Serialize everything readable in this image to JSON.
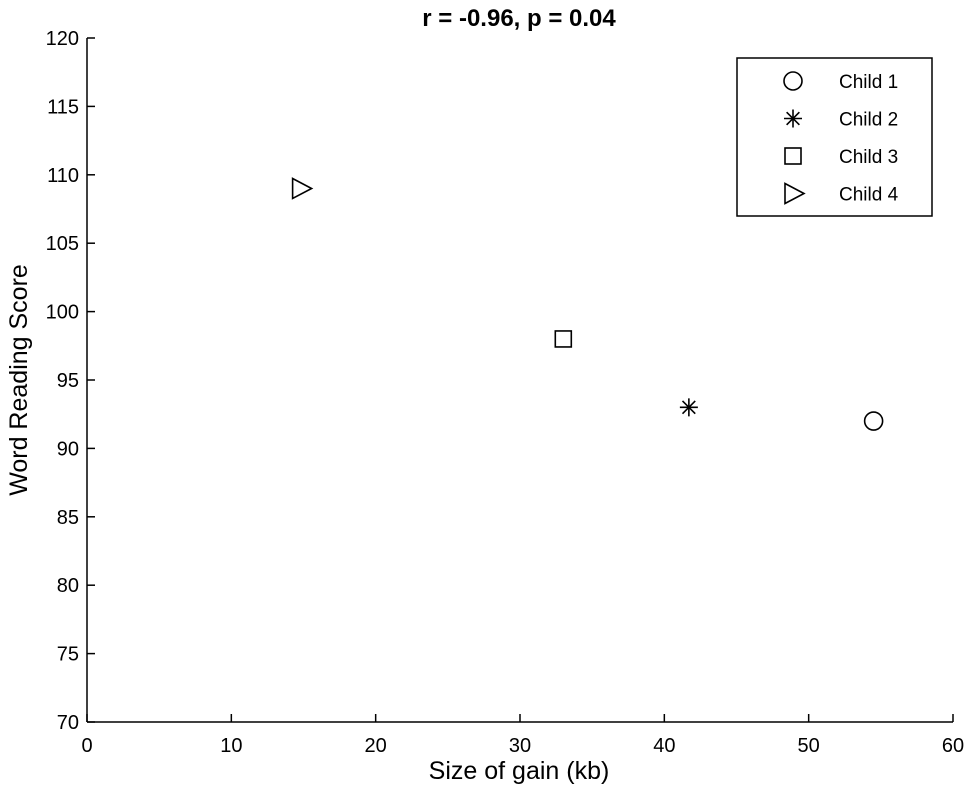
{
  "chart_data": {
    "type": "scatter",
    "title": "r = -0.96, p = 0.04",
    "xlabel": "Size of gain (kb)",
    "ylabel": "Word Reading Score",
    "xlim": [
      0,
      60
    ],
    "ylim": [
      70,
      120
    ],
    "x_ticks": [
      "0",
      "10",
      "20",
      "30",
      "40",
      "50",
      "60"
    ],
    "y_ticks": [
      "70",
      "75",
      "80",
      "85",
      "90",
      "95",
      "100",
      "105",
      "110",
      "115",
      "120"
    ],
    "grid": false,
    "legend_position": "top-right",
    "series": [
      {
        "name": "Child 1",
        "marker": "circle",
        "x": [
          54.5
        ],
        "y": [
          92
        ]
      },
      {
        "name": "Child 2",
        "marker": "asterisk",
        "x": [
          41.7
        ],
        "y": [
          93
        ]
      },
      {
        "name": "Child 3",
        "marker": "square",
        "x": [
          33
        ],
        "y": [
          98
        ]
      },
      {
        "name": "Child 4",
        "marker": "triangle-right",
        "x": [
          14.8
        ],
        "y": [
          109
        ]
      }
    ],
    "colors": {
      "axis": "#000000",
      "marker": "#000000",
      "background": "#ffffff"
    }
  }
}
